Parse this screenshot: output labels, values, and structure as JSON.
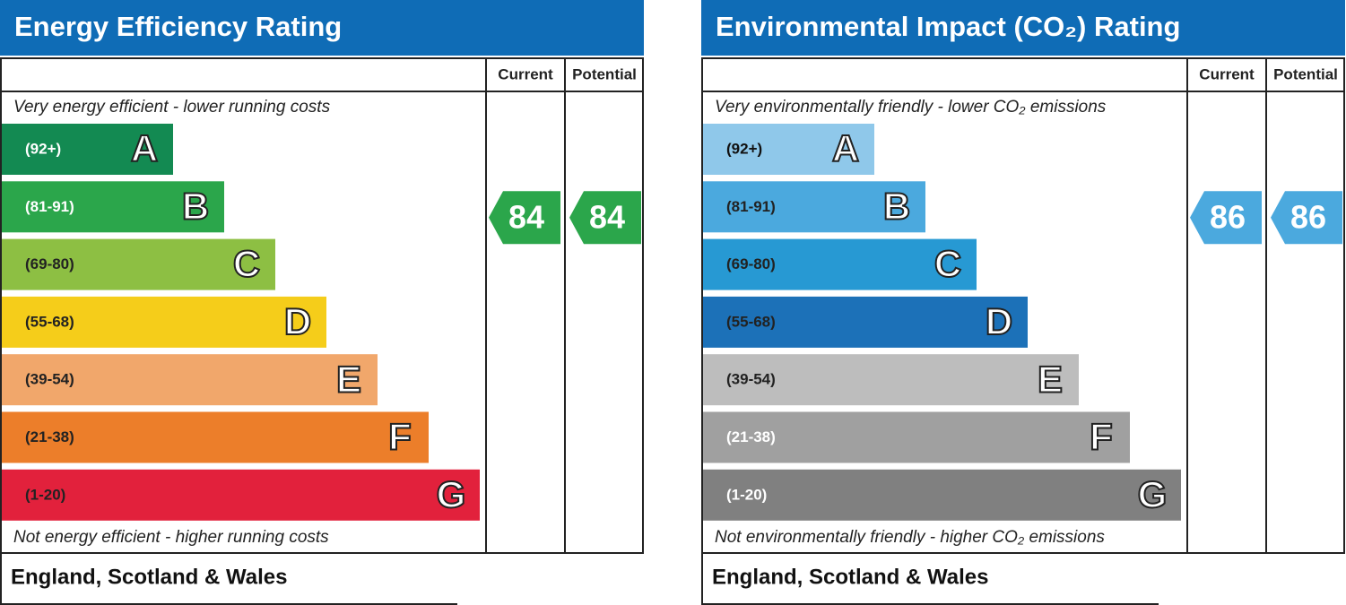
{
  "panels": [
    {
      "title": "Energy Efficiency Rating",
      "current_label": "Current",
      "potential_label": "Potential",
      "top_note": "Very energy efficient - lower running costs",
      "bottom_note": "Not energy efficient - higher running costs",
      "footer": "England, Scotland & Wales",
      "bands": [
        {
          "range": "(92+)",
          "letter": "A",
          "color": "#138a52",
          "text_color": "#ffffff"
        },
        {
          "range": "(81-91)",
          "letter": "B",
          "color": "#2ba64b",
          "text_color": "#ffffff"
        },
        {
          "range": "(69-80)",
          "letter": "C",
          "color": "#8dbf43",
          "text_color": "#222222"
        },
        {
          "range": "(55-68)",
          "letter": "D",
          "color": "#f5cd1a",
          "text_color": "#222222"
        },
        {
          "range": "(39-54)",
          "letter": "E",
          "color": "#f1a76b",
          "text_color": "#222222"
        },
        {
          "range": "(21-38)",
          "letter": "F",
          "color": "#ec7e2a",
          "text_color": "#222222"
        },
        {
          "range": "(1-20)",
          "letter": "G",
          "color": "#e2213c",
          "text_color": "#222222"
        }
      ],
      "current": 84,
      "potential": 84,
      "rating_color": "#2ba64b"
    },
    {
      "title": "Environmental Impact (CO₂) Rating",
      "current_label": "Current",
      "potential_label": "Potential",
      "top_note": "Very environmentally friendly - lower CO₂ emissions",
      "bottom_note": "Not environmentally friendly - higher CO₂ emissions",
      "footer": "England, Scotland & Wales",
      "bands": [
        {
          "range": "(92+)",
          "letter": "A",
          "color": "#8fc8ea",
          "text_color": "#111111"
        },
        {
          "range": "(81-91)",
          "letter": "B",
          "color": "#4ba9de",
          "text_color": "#222222"
        },
        {
          "range": "(69-80)",
          "letter": "C",
          "color": "#2799d3",
          "text_color": "#222222"
        },
        {
          "range": "(55-68)",
          "letter": "D",
          "color": "#1c71b8",
          "text_color": "#222222"
        },
        {
          "range": "(39-54)",
          "letter": "E",
          "color": "#bdbdbd",
          "text_color": "#222222"
        },
        {
          "range": "(21-38)",
          "letter": "F",
          "color": "#a0a0a0",
          "text_color": "#ffffff"
        },
        {
          "range": "(1-20)",
          "letter": "G",
          "color": "#808080",
          "text_color": "#ffffff"
        }
      ],
      "current": 86,
      "potential": 86,
      "rating_color": "#4ba9de"
    }
  ]
}
